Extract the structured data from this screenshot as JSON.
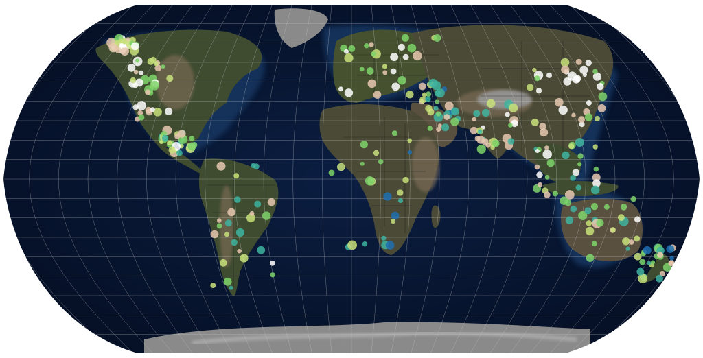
{
  "map": {
    "projection": "robinson",
    "style": "dark-bathymetry-world-map",
    "colors": {
      "ocean_deep": "#06122b",
      "ocean_shelf": "#14305a",
      "land_low": "#3a4a2e",
      "land_high": "#6b5e4a",
      "ice": "#8a8a8a",
      "graticule": "#c8c8c8",
      "borders": "#1a1a1a",
      "dot_ramp": [
        "#1a2a8c",
        "#1f6fb0",
        "#3fb4a0",
        "#7ed46a",
        "#c8e07a",
        "#e8c8b0",
        "#ffffff"
      ]
    },
    "graticule": {
      "meridian_step_deg": 15,
      "parallel_step_deg": 10
    },
    "hotspot_regions": [
      {
        "name": "north-america",
        "intensity": 0.9
      },
      {
        "name": "central-america",
        "intensity": 0.7
      },
      {
        "name": "south-america",
        "intensity": 0.6
      },
      {
        "name": "europe",
        "intensity": 0.8
      },
      {
        "name": "africa",
        "intensity": 0.4
      },
      {
        "name": "middle-east",
        "intensity": 0.5
      },
      {
        "name": "south-asia",
        "intensity": 0.6
      },
      {
        "name": "east-asia",
        "intensity": 1.0
      },
      {
        "name": "southeast-asia",
        "intensity": 0.7
      },
      {
        "name": "australia",
        "intensity": 0.6
      },
      {
        "name": "new-zealand",
        "intensity": 0.5
      }
    ]
  }
}
